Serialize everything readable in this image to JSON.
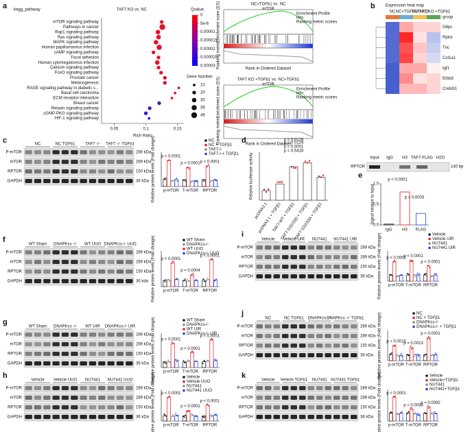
{
  "panel_a": {
    "label": "a",
    "title": "kegg_pathway",
    "comparison": "TAF7 KO vs. NC",
    "x_label": "Rich Ratio",
    "pathways": [
      "mTOR signaling pathway",
      "Pathways in cancer",
      "Rap1 signaling pathway",
      "Ras signaling pathway",
      "MAPK signaling pathway",
      "Human papillomavirus infection",
      "cAMP signaling pathway",
      "Focal adhesion",
      "Human cytomegalovirus infection",
      "Calcium signaling pathway",
      "FoxO signaling pathway",
      "Prostate cancer",
      "Melanogenesis",
      "RAGE signaling pathway in diabetic c...",
      "Basal cell carcinoma",
      "ECM-receptor interaction",
      "Breast cancer",
      "Relaxin signaling pathway",
      "cGMP-PKG signaling pathway",
      "HIF-1 signaling pathway"
    ],
    "rich_ratio": [
      0.125,
      0.126,
      0.119,
      0.12,
      0.116,
      0.121,
      0.112,
      0.12,
      0.118,
      0.12,
      0.124,
      0.13,
      0.13,
      0.152,
      0.146,
      0.141,
      0.121,
      0.106,
      0.1,
      0.105
    ],
    "gene_number": [
      20,
      49,
      30,
      30,
      30,
      39,
      20,
      20,
      30,
      20,
      20,
      20,
      20,
      10,
      10,
      10,
      20,
      20,
      20,
      10
    ],
    "colors": [
      "#e8102a",
      "#e8102a",
      "#e8102a",
      "#e8102a",
      "#e8102a",
      "#e8102a",
      "#e8102a",
      "#e8102a",
      "#e8102a",
      "#e8102a",
      "#e8102a",
      "#e8102a",
      "#e8102a",
      "#b0206a",
      "#e8102a",
      "#e8102a",
      "#4a1ca8",
      "#4a1ca8",
      "#2a1ad0",
      "#1a1ae8"
    ],
    "xlim": [
      0.03,
      0.16
    ],
    "xticks": [
      0.05,
      0.1,
      0.15
    ],
    "qvalue_title": "Qvalue",
    "qvalue_lim": [
      0,
      3e-05
    ],
    "qvalue_ticks": [
      0,
      {
        "value": 5e-06,
        "label": "5e-6"
      },
      1e-05,
      1.5e-05,
      2e-05,
      2.5e-05,
      3e-05
    ],
    "size_title": "Gene Number",
    "size_ticks": [
      10,
      20,
      30,
      39,
      49
    ]
  },
  "gsea": {
    "y_label": "Enrichment score (ES)",
    "metric_label": "Ranking metric",
    "x_label": "Rank in Ordered Dataset",
    "legend": [
      "Enrichment Profile",
      "Hits",
      "Ranking metric scores"
    ],
    "plots": [
      {
        "title": "NC+TGFb1 vs. NC",
        "gene_set": "mTOR"
      },
      {
        "title": "TAF7 KO +TGFb1 vs. NC+TGFb1",
        "gene_set": "mTOR"
      }
    ]
  },
  "panel_b": {
    "label": "b",
    "title": "Expression heat map",
    "group_title": "group",
    "groups": [
      "NC",
      "NC+TGFb1",
      "TAF7 KO",
      "TAF7 KO +TGFb1"
    ],
    "group_colors": [
      "#e8743b",
      "#6aaed6",
      "#f2c14e",
      "#58a55c"
    ],
    "genes": [
      "G6pc",
      "Rptor",
      "Tnc",
      "Col1a1",
      "Igf1",
      "Erbb3",
      "Creb3l1"
    ],
    "zlim": [
      -1.5,
      1.5
    ],
    "values": [
      [
        -1.2,
        0.6,
        0.3,
        0.3
      ],
      [
        -1.2,
        1.5,
        0.2,
        -0.5
      ],
      [
        -1.2,
        1.2,
        0.4,
        -0.4
      ],
      [
        -1.2,
        1.3,
        0.3,
        -0.3
      ],
      [
        -1.3,
        0.6,
        0.6,
        0.1
      ],
      [
        -1.3,
        0.8,
        0.2,
        0.3
      ],
      [
        -1.3,
        0.5,
        0.5,
        0.3
      ]
    ]
  },
  "chip_blot": {
    "lanes": [
      "Input",
      "IgG",
      "H3",
      "TAF7-FLAG",
      "H2O"
    ],
    "row": "RPTOR",
    "size": "140 bp"
  },
  "panel_d": {
    "label": "d",
    "y_label": "Relative luciferase activity",
    "categories": [
      "pcDNA3.1",
      "pcDNA3.1 + TGFβ1",
      "TAF7-WT + TGFβ1",
      "TAF7-S32/33D + TGFβ1",
      "TAF7-S32/33A + TGFβ1"
    ],
    "values": [
      1,
      1.7,
      3.5,
      3.9,
      2.4
    ],
    "ylim": [
      0,
      5
    ],
    "pvalues": [
      "p = 0.0124",
      "p = 0.0001",
      "p = 0.5418",
      "p = 0.0128"
    ]
  },
  "panel_e": {
    "label": "e",
    "y_label": "Signal relative to Input",
    "categories": [
      "IgG",
      "H3",
      "FLAG"
    ],
    "values": [
      0.02,
      0.8,
      0.28
    ],
    "ylim": [
      0,
      1
    ],
    "yticks": [
      {
        "value": 0,
        "label": "0.0"
      },
      0.5,
      {
        "value": 1,
        "label": "1.0"
      }
    ],
    "pvalues": [
      "p < 0.0001",
      "p = 0.0003"
    ]
  },
  "blot_panels": [
    {
      "label": "c",
      "lanes": [
        "NC",
        "NC TGFb1",
        "TAF7 -/-",
        "TAF7 -/- TGFb1"
      ],
      "rows": [
        {
          "name": "P-mTOR",
          "size": "289 kDa"
        },
        {
          "name": "mTOR",
          "size": "289 kDa"
        },
        {
          "name": "RPTOR",
          "size": "150 kDa"
        },
        {
          "name": "GAPDH",
          "size": "36 kDa"
        }
      ],
      "y_label": "Relative protein levels (Fold change)",
      "categories": [
        "p-mTOR",
        "T-mTOR",
        "RPTOR"
      ],
      "ylim": [
        0,
        5
      ],
      "series": [
        {
          "name": "NC",
          "color": "#111111",
          "values": [
            1,
            1,
            1
          ]
        },
        {
          "name": "NC + TGFβ1",
          "color": "#e31a1c",
          "values": [
            3.8,
            2.8,
            3.0
          ]
        },
        {
          "name": "TAF7-/-",
          "color": "#888888",
          "values": [
            0.9,
            0.8,
            0.9
          ]
        },
        {
          "name": "TAF7-/-+ TGFβ1",
          "color": "#1f3fd6",
          "values": [
            1.0,
            0.9,
            1.0
          ]
        }
      ],
      "pvalues": [
        "p < 0.0001",
        "p < 0.0001",
        "p < 0.0001"
      ]
    },
    {
      "label": "f",
      "lanes": [
        "WT Sham",
        "DNAPKcs -/-",
        "WT UUO",
        "DNAPKcs-/- UUO"
      ],
      "rows": [
        {
          "name": "P-mTOR",
          "size": "289 kDa"
        },
        {
          "name": "mTOR",
          "size": "289 kDa"
        },
        {
          "name": "RPTOR",
          "size": "150 kDa"
        },
        {
          "name": "GAPDH",
          "size": "36 kda"
        }
      ],
      "y_label": "Relative protein levels (Fold change)",
      "categories": [
        "p-mTOR",
        "T-mTOR",
        "RPTOR"
      ],
      "ylim": [
        0,
        6
      ],
      "series": [
        {
          "name": "WT Sham",
          "color": "#111111",
          "values": [
            1,
            1,
            1
          ]
        },
        {
          "name": "DNAPKcs-/-",
          "color": "#888888",
          "values": [
            1.1,
            1,
            1.2
          ]
        },
        {
          "name": "WT UUO",
          "color": "#e31a1c",
          "values": [
            4.0,
            2.0,
            4.5
          ]
        },
        {
          "name": "DNAPKcs-/- UUO",
          "color": "#1f3fd6",
          "values": [
            1.2,
            1.0,
            1.1
          ]
        }
      ],
      "pvalues": [
        "p < 0.0001",
        "p = 0.0004",
        "p < 0.0001"
      ]
    },
    {
      "label": "i",
      "lanes": [
        "Vehicle",
        "Vehicle UIR",
        "NU7441",
        "NU7441 UIR"
      ],
      "rows": [
        {
          "name": "P-mTOR",
          "size": "289 kDa"
        },
        {
          "name": "mTOR",
          "size": "289 kDa"
        },
        {
          "name": "RPTOR",
          "size": "150 kDa"
        },
        {
          "name": "GAPDH",
          "size": "36 kDa"
        }
      ],
      "y_label": "Relative protein levels (Fold change)",
      "categories": [
        "p-mTOR",
        "T-mTOR",
        "RPTOR"
      ],
      "ylim": [
        0,
        5
      ],
      "series": [
        {
          "name": "Vehicle",
          "color": "#111111",
          "values": [
            1,
            1,
            1
          ]
        },
        {
          "name": "Vehicle UIR",
          "color": "#e31a1c",
          "values": [
            3.2,
            3.5,
            2.5
          ]
        },
        {
          "name": "NU7441",
          "color": "#888888",
          "values": [
            0.9,
            1.0,
            0.9
          ]
        },
        {
          "name": "NU7441 UIR",
          "color": "#1f3fd6",
          "values": [
            1.0,
            1.1,
            1.0
          ]
        }
      ],
      "pvalues": [
        "p < 0.0001",
        "p < 0.0001",
        "p < 0.0001"
      ]
    },
    {
      "label": "g",
      "lanes": [
        "WT Sham",
        "DNAPKcs -/-",
        "WT UIR",
        "DNAPKcs-/- UIR"
      ],
      "rows": [
        {
          "name": "P-mTOR",
          "size": "289 kDa"
        },
        {
          "name": "mTOR",
          "size": "289 kDa"
        },
        {
          "name": "RPTOR",
          "size": "150 kDa"
        },
        {
          "name": "GAPDH",
          "size": "36 kDa"
        }
      ],
      "y_label": "Relative protein levels (Fold change)",
      "categories": [
        "p-mTOR",
        "T-mTOR",
        "RPTOR"
      ],
      "ylim": [
        0,
        6
      ],
      "series": [
        {
          "name": "WT Sham",
          "color": "#111111",
          "values": [
            1,
            1,
            1
          ]
        },
        {
          "name": "DNAPKcs-/-",
          "color": "#888888",
          "values": [
            1,
            1,
            1
          ]
        },
        {
          "name": "WT UIR",
          "color": "#e31a1c",
          "values": [
            4.2,
            2.6,
            4.8
          ]
        },
        {
          "name": "DNAPKcs-/- UIR",
          "color": "#1f3fd6",
          "values": [
            1.3,
            1.1,
            1.2
          ]
        }
      ],
      "pvalues": [
        "p < 0.0001",
        "p < 0.0001",
        "p < 0.0001"
      ]
    },
    {
      "label": "j",
      "lanes": [
        "NC",
        "NC TGFb1",
        "DNAPKcs -/-",
        "DNAPKcs -/- TGFb1"
      ],
      "rows": [
        {
          "name": "P-mTOR",
          "size": "289 kDa"
        },
        {
          "name": "mTOR",
          "size": "289 kDa"
        },
        {
          "name": "RPTOR",
          "size": "150 kDa"
        },
        {
          "name": "GAPDH",
          "size": "36 kDa"
        }
      ],
      "y_label": "Relative protein levels (Fold change)",
      "categories": [
        "p-mTOR",
        "T-mTOR",
        "RPTOR"
      ],
      "ylim": [
        0,
        5
      ],
      "series": [
        {
          "name": "NC",
          "color": "#111111",
          "values": [
            1,
            1,
            1
          ]
        },
        {
          "name": "NC + TGFβ1",
          "color": "#e31a1c",
          "values": [
            2.5,
            2.2,
            3.8
          ]
        },
        {
          "name": "DNAPKcs-/-",
          "color": "#888888",
          "values": [
            0.8,
            0.9,
            0.9
          ]
        },
        {
          "name": "DNAPKcs-/- + TGFβ1",
          "color": "#1f3fd6",
          "values": [
            0.9,
            1.0,
            1.0
          ]
        }
      ],
      "pvalues": [
        "p = 0.0015",
        "p = 0.0013",
        "p < 0.0001"
      ]
    },
    {
      "label": "h",
      "lanes": [
        "Vehicle",
        "Vehicle UUO",
        "NU7441",
        "NU7441 UUO"
      ],
      "rows": [
        {
          "name": "P-mTOR",
          "size": "289 kDa"
        },
        {
          "name": "mTOR",
          "size": "289 kDa"
        },
        {
          "name": "RPTOR",
          "size": "150 kDa"
        },
        {
          "name": "GAPDH",
          "size": "36 kDa"
        }
      ],
      "y_label": "Relative protein levels (Fold change)",
      "categories": [
        "p-mTOR",
        "T-mTOR",
        "RPTOR"
      ],
      "ylim": [
        0,
        6
      ],
      "series": [
        {
          "name": "Vehicle",
          "color": "#111111",
          "values": [
            1,
            1,
            1
          ]
        },
        {
          "name": "Vehicle UUO",
          "color": "#e31a1c",
          "values": [
            4.5,
            2.0,
            3.0
          ]
        },
        {
          "name": "NU7441",
          "color": "#888888",
          "values": [
            0.9,
            1,
            1
          ]
        },
        {
          "name": "NU7441 UUO",
          "color": "#1f3fd6",
          "values": [
            1.1,
            1.0,
            1.1
          ]
        }
      ],
      "pvalues": [
        "p < 0.0001",
        "p < 0.0001",
        "p < 0.0001"
      ]
    },
    {
      "label": "k",
      "lanes": [
        "Vehicle",
        "Vehicle TGFb1",
        "NU7441",
        "NU7441 TGFb1"
      ],
      "rows": [
        {
          "name": "P-mTOR",
          "size": "289 kDa"
        },
        {
          "name": "mTOR",
          "size": "289 kDa"
        },
        {
          "name": "RPTOR",
          "size": "150 kDa"
        },
        {
          "name": "GAPDH",
          "size": "36 kDa"
        }
      ],
      "y_label": "Relative protein levels (Fold change)",
      "categories": [
        "p-mTOR",
        "T-mTOR",
        "RPTOR"
      ],
      "ylim": [
        0,
        4
      ],
      "series": [
        {
          "name": "Vehicle",
          "color": "#111111",
          "values": [
            1,
            1,
            1
          ]
        },
        {
          "name": "Vehicle+TGFβ1",
          "color": "#e31a1c",
          "values": [
            3.0,
            1.5,
            1.8
          ]
        },
        {
          "name": "NU7441",
          "color": "#888888",
          "values": [
            0.8,
            0.9,
            0.9
          ]
        },
        {
          "name": "NU7441+TGFβ1",
          "color": "#1f3fd6",
          "values": [
            1.0,
            0.9,
            1.0
          ]
        }
      ],
      "pvalues": [
        "p < 0.0001",
        "p = 0.0038",
        "p = 0.0092"
      ]
    }
  ]
}
